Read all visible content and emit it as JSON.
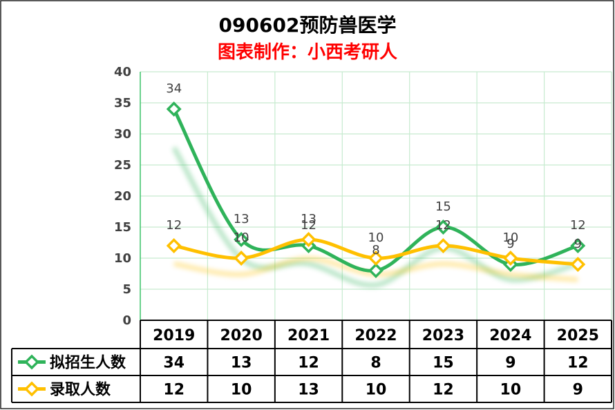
{
  "chart_data": {
    "type": "line",
    "title": "090602预防兽医学",
    "subtitle": "图表制作：小西考研人",
    "categories": [
      "2019",
      "2020",
      "2021",
      "2022",
      "2023",
      "2024",
      "2025"
    ],
    "ylim": [
      0,
      40
    ],
    "yticks": [
      "0",
      "5",
      "10",
      "15",
      "20",
      "25",
      "30",
      "35",
      "40"
    ],
    "grid": true,
    "legend": "data-table",
    "series": [
      {
        "name": "拟招生人数",
        "values": [
          34,
          13,
          12,
          8,
          15,
          9,
          12
        ],
        "color": "#2fb35a"
      },
      {
        "name": "录取人数",
        "values": [
          12,
          10,
          13,
          10,
          12,
          10,
          9
        ],
        "color": "#ffc000"
      }
    ]
  },
  "colors": {
    "title": "#000000",
    "subtitle": "#ff0000",
    "grid": "#c6ebcf",
    "axis": "#3cc36a",
    "label": "#404040"
  }
}
